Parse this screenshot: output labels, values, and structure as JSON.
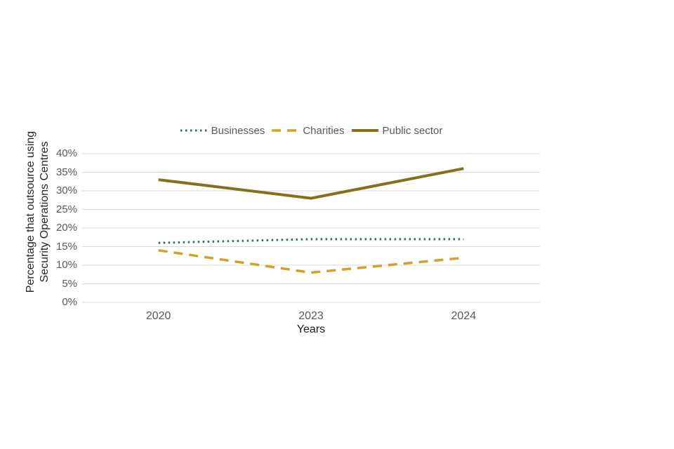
{
  "chart_data": {
    "type": "line",
    "categories": [
      "2020",
      "2023",
      "2024"
    ],
    "series": [
      {
        "name": "Businesses",
        "values": [
          16,
          17,
          17
        ],
        "color": "#2e6f63",
        "style": "dotted",
        "dash": "2.5 4.5",
        "width": 3
      },
      {
        "name": "Charities",
        "values": [
          14,
          8,
          12
        ],
        "color": "#d2a125",
        "style": "dashed",
        "dash": "13 9",
        "width": 3.5
      },
      {
        "name": "Public sector",
        "values": [
          33,
          28,
          36
        ],
        "color": "#857119",
        "style": "solid",
        "dash": "",
        "width": 4
      }
    ],
    "xlabel": "Years",
    "ylabel": "Percentage that outsource using Security Operations Centres",
    "ylabel_lines": [
      "Percentage that outsource using",
      "Security Operations Centres"
    ],
    "y_ticks": [
      "0%",
      "5%",
      "10%",
      "15%",
      "20%",
      "25%",
      "30%",
      "35%",
      "40%"
    ],
    "ylim": [
      0,
      40
    ],
    "y_tick_step": 5,
    "grid": true,
    "legend_position": "top",
    "gridline_color": "#d9d9d9",
    "tick_label_color": "#595959",
    "axis_title_color": "#262626"
  }
}
